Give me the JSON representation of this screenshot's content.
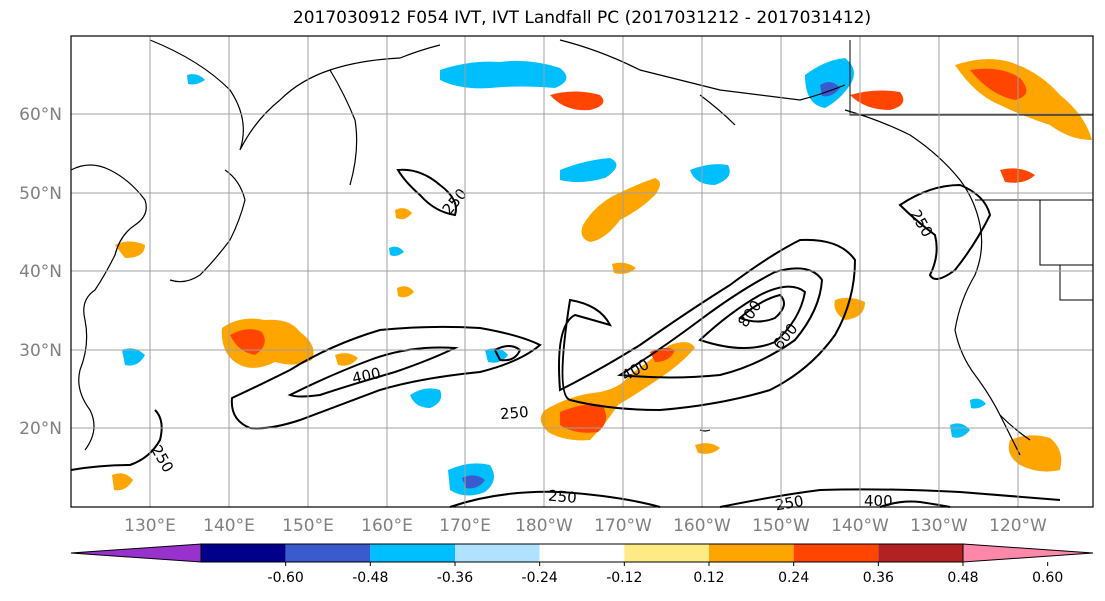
{
  "title": "2017030912 F054 IVT, IVT Landfall PC (2017031212 - 2017031412)",
  "lat_labels": [
    "60°N",
    "50°N",
    "40°N",
    "30°N",
    "20°N"
  ],
  "lon_labels": [
    "130°E",
    "140°E",
    "150°E",
    "160°E",
    "170°E",
    "180°W",
    "170°W",
    "160°W",
    "150°W",
    "140°W",
    "130°W",
    "120°W"
  ],
  "colorbar": {
    "colors": [
      "#9932cc",
      "#00008b",
      "#3a5bcd",
      "#00bfff",
      "#b0e2ff",
      "#ffffff",
      "#ffeb85",
      "#ffa500",
      "#ff4500",
      "#b22222",
      "#ff88aa"
    ],
    "tick_labels": [
      "-0.60",
      "-0.48",
      "-0.36",
      "-0.24",
      "-0.12",
      "0.12",
      "0.24",
      "0.36",
      "0.48",
      "0.60"
    ]
  },
  "contour_labels": [
    "250",
    "250",
    "250",
    "400",
    "400",
    "600",
    "800",
    "250",
    "250",
    "400",
    "250"
  ],
  "map": {
    "land_color": "#ffffff",
    "coastline_color": "#000000",
    "grid": true
  }
}
